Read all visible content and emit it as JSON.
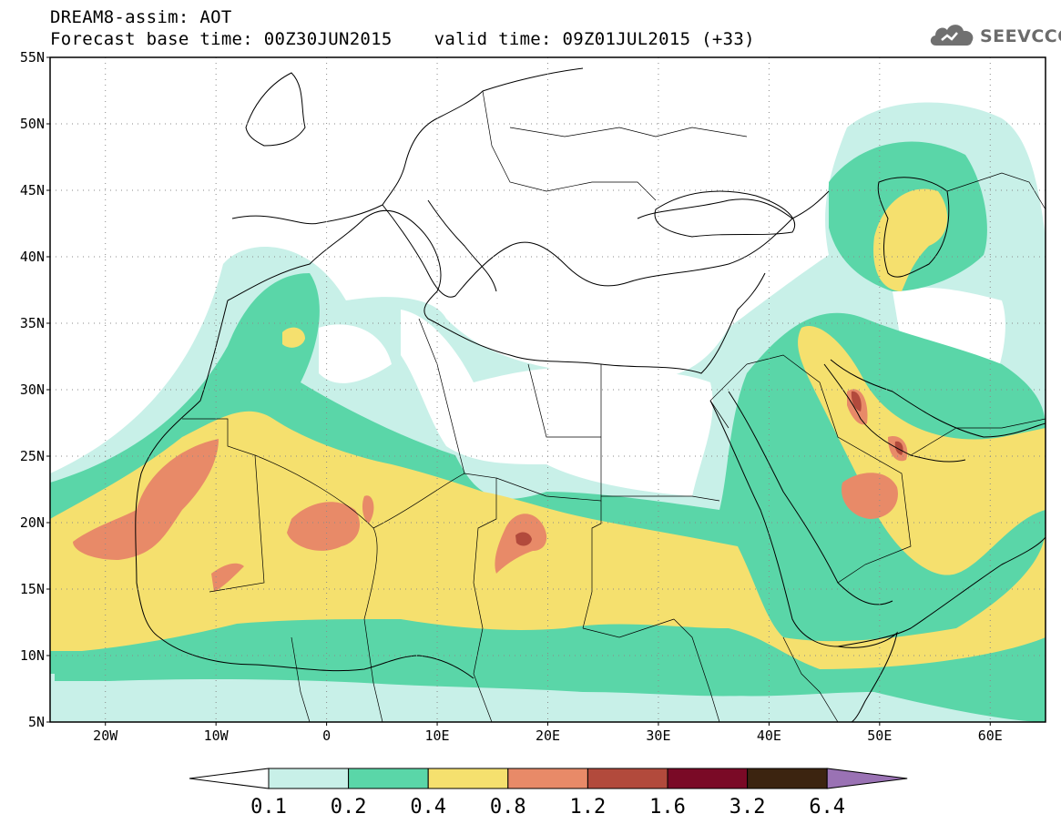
{
  "header": {
    "line1": "DREAM8-assim: AOT",
    "base_time": "Forecast base time: 00Z30JUN2015",
    "valid_time": "valid time: 09Z01JUL2015 (+33)"
  },
  "logo": {
    "text": "SEEVCCC",
    "icon": "cloud-icon"
  },
  "map": {
    "lat_labels": [
      "55N",
      "50N",
      "45N",
      "40N",
      "35N",
      "30N",
      "25N",
      "20N",
      "15N",
      "10N",
      "5N"
    ],
    "lon_labels": [
      "20W",
      "10W",
      "0",
      "10E",
      "20E",
      "30E",
      "40E",
      "50E",
      "60E"
    ]
  },
  "colorbar": {
    "labels": [
      "0.1",
      "0.2",
      "0.4",
      "0.8",
      "1.2",
      "1.6",
      "3.2",
      "6.4"
    ],
    "colors": [
      "#ffffff",
      "#c8f0e8",
      "#5ad6a8",
      "#f5e06e",
      "#e88a68",
      "#b24a3c",
      "#7a0a26",
      "#3c2410",
      "#9a72b4"
    ]
  }
}
